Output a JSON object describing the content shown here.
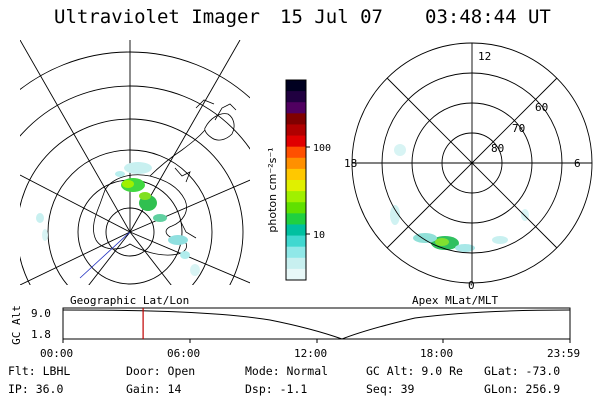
{
  "header": {
    "instrument": "Ultraviolet Imager",
    "date": "15 Jul 07",
    "time": "03:48:44 UT"
  },
  "colorbar": {
    "unit_label": "photon cm⁻²s⁻¹",
    "ticks": [
      "100",
      "10"
    ],
    "colors": [
      "#000020",
      "#200040",
      "#500060",
      "#800000",
      "#b00000",
      "#e00000",
      "#ff5000",
      "#ff9000",
      "#ffc800",
      "#e0f000",
      "#a0f000",
      "#60e000",
      "#20d040",
      "#00c0a0",
      "#40d8d0",
      "#90e8e8",
      "#c8f0f0",
      "#e8f8f8"
    ]
  },
  "geo_map": {
    "label": "Geographic Lat/Lon"
  },
  "polar_map": {
    "label": "Apex MLat/MLT",
    "mlt_labels": {
      "top": "12",
      "left": "18",
      "right": "6",
      "bottom": "0"
    },
    "lat_labels": [
      "60",
      "70",
      "80"
    ]
  },
  "altitude_plot": {
    "ylabel": "GC Alt",
    "yticks": [
      "9.0",
      "1.8"
    ],
    "xticks": [
      "00:00",
      "06:00",
      "12:00",
      "18:00",
      "23:59"
    ],
    "current_time_fraction": 0.158,
    "marker_color": "#c00000"
  },
  "info": {
    "flt": "Flt: LBHL",
    "ip": "IP: 36.0",
    "door": "Door: Open",
    "gain": "Gain: 14",
    "mode": "Mode: Normal",
    "dsp": "Dsp:   -1.1",
    "gcalt": "GC Alt: 9.0 Re",
    "seq": "Seq: 39",
    "glat": "GLat: -73.0",
    "glon": "GLon: 256.9"
  }
}
